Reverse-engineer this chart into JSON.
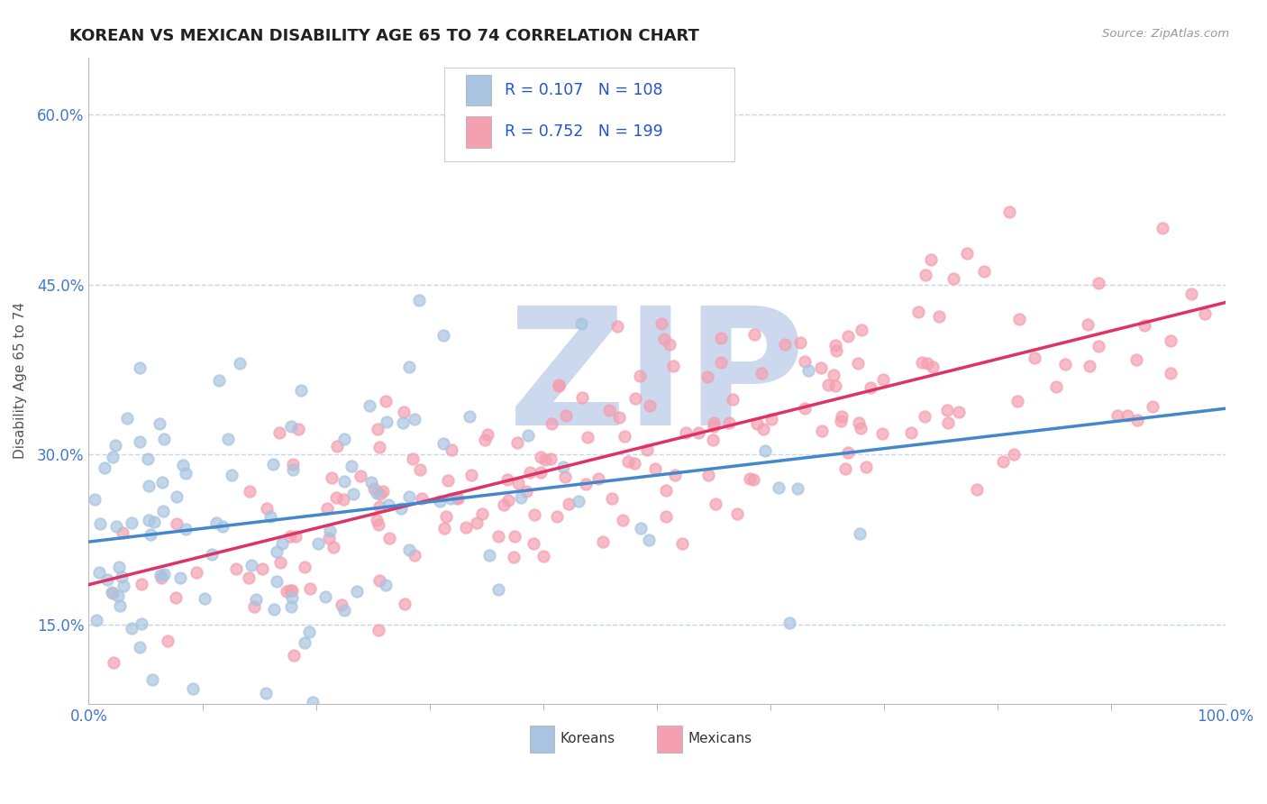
{
  "title": "KOREAN VS MEXICAN DISABILITY AGE 65 TO 74 CORRELATION CHART",
  "source_text": "Source: ZipAtlas.com",
  "ylabel": "Disability Age 65 to 74",
  "xlim": [
    0.0,
    1.0
  ],
  "ylim": [
    0.08,
    0.65
  ],
  "yticks": [
    0.15,
    0.3,
    0.45,
    0.6
  ],
  "ytick_labels": [
    "15.0%",
    "30.0%",
    "45.0%",
    "60.0%"
  ],
  "xtick_labels": [
    "0.0%",
    "100.0%"
  ],
  "korean_R": 0.107,
  "korean_N": 108,
  "mexican_R": 0.752,
  "mexican_N": 199,
  "korean_color": "#a8c4e0",
  "mexican_color": "#f4a0b0",
  "korean_line_color": "#4488cc",
  "mexican_line_color": "#dd3366",
  "background_color": "#ffffff",
  "grid_color": "#c8d4e8",
  "title_color": "#222222",
  "axis_label_color": "#4477cc",
  "legend_text_color": "#2255cc",
  "watermark_text": "ZIP",
  "watermark_color": "#ccd8ee"
}
